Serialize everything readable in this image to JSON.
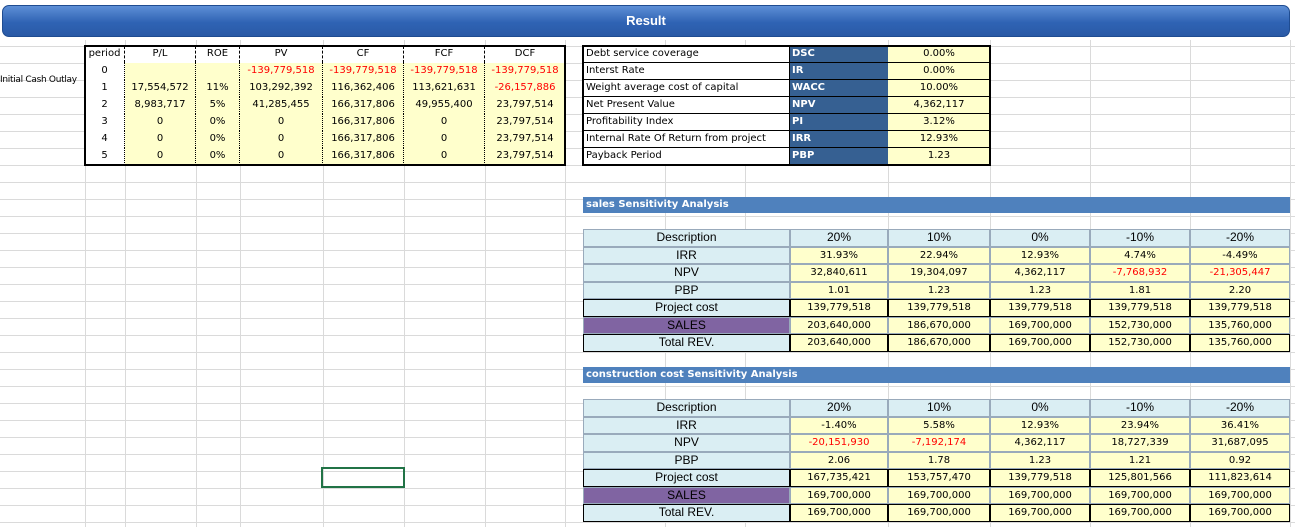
{
  "header": {
    "title": "Result"
  },
  "side_label": "Initial Cash Outlay",
  "cash_flow_table": {
    "columns": [
      "period",
      "P/L",
      "ROE",
      "PV",
      "CF",
      "FCF",
      "DCF"
    ],
    "negative_color": "#ff0000",
    "rows": [
      [
        "0",
        null,
        null,
        "-139,779,518",
        "-139,779,518",
        "-139,779,518",
        "-139,779,518"
      ],
      [
        "1",
        "17,554,572",
        "11%",
        "103,292,392",
        "116,362,406",
        "113,621,631",
        "-26,157,886"
      ],
      [
        "2",
        "8,983,717",
        "5%",
        "41,285,455",
        "166,317,806",
        "49,955,400",
        "23,797,514"
      ],
      [
        "3",
        "0",
        "0%",
        "0",
        "166,317,806",
        "0",
        "23,797,514"
      ],
      [
        "4",
        "0",
        "0%",
        "0",
        "166,317,806",
        "0",
        "23,797,514"
      ],
      [
        "5",
        "0",
        "0%",
        "0",
        "166,317,806",
        "0",
        "23,797,514"
      ]
    ]
  },
  "summary_table": {
    "rows": [
      [
        "Debt service coverage",
        "DSC",
        "0.00%"
      ],
      [
        "Interst Rate",
        "IR",
        "0.00%"
      ],
      [
        "Weight average cost of capital",
        "WACC",
        "10.00%"
      ],
      [
        "Net Present Value",
        "NPV",
        "4,362,117"
      ],
      [
        "Profitability Index",
        "PI",
        "3.12%"
      ],
      [
        "Internal Rate Of Return from project",
        "IRR",
        "12.93%"
      ],
      [
        "Payback Period",
        "PBP",
        "1.23"
      ]
    ]
  },
  "sensitivity_tables": [
    {
      "title": "sales Sensitivity Analysis",
      "negative_color": "#ff0000",
      "rows": [
        {
          "cells": [
            "Description",
            "20%",
            "10%",
            "0%",
            "-10%",
            "-20%"
          ]
        },
        {
          "cells": [
            "IRR",
            "31.93%",
            "22.94%",
            "12.93%",
            "4.74%",
            "-4.49%"
          ]
        },
        {
          "cells": [
            "NPV",
            "32,840,611",
            "19,304,097",
            "4,362,117",
            "-7,768,932",
            "-21,305,447"
          ],
          "negatives_red": true
        },
        {
          "cells": [
            "PBP",
            "1.01",
            "1.23",
            "1.23",
            "1.81",
            "2.20"
          ]
        },
        {
          "cells": [
            "Project cost",
            "139,779,518",
            "139,779,518",
            "139,779,518",
            "139,779,518",
            "139,779,518"
          ]
        },
        {
          "cells": [
            "SALES",
            "203,640,000",
            "186,670,000",
            "169,700,000",
            "152,730,000",
            "135,760,000"
          ]
        },
        {
          "cells": [
            "Total REV.",
            "203,640,000",
            "186,670,000",
            "169,700,000",
            "152,730,000",
            "135,760,000"
          ]
        }
      ]
    },
    {
      "title": "construction cost Sensitivity Analysis",
      "negative_color": "#ff0000",
      "rows": [
        {
          "cells": [
            "Description",
            "20%",
            "10%",
            "0%",
            "-10%",
            "-20%"
          ]
        },
        {
          "cells": [
            "IRR",
            "-1.40%",
            "5.58%",
            "12.93%",
            "23.94%",
            "36.41%"
          ]
        },
        {
          "cells": [
            "NPV",
            "-20,151,930",
            "-7,192,174",
            "4,362,117",
            "18,727,339",
            "31,687,095"
          ],
          "negatives_red": true
        },
        {
          "cells": [
            "PBP",
            "2.06",
            "1.78",
            "1.23",
            "1.21",
            "0.92"
          ]
        },
        {
          "cells": [
            "Project cost",
            "167,735,421",
            "153,757,470",
            "139,779,518",
            "125,801,566",
            "111,823,614"
          ]
        },
        {
          "cells": [
            "SALES",
            "169,700,000",
            "169,700,000",
            "169,700,000",
            "169,700,000",
            "169,700,000"
          ]
        },
        {
          "cells": [
            "Total REV.",
            "169,700,000",
            "169,700,000",
            "169,700,000",
            "169,700,000",
            "169,700,000"
          ]
        }
      ]
    }
  ]
}
